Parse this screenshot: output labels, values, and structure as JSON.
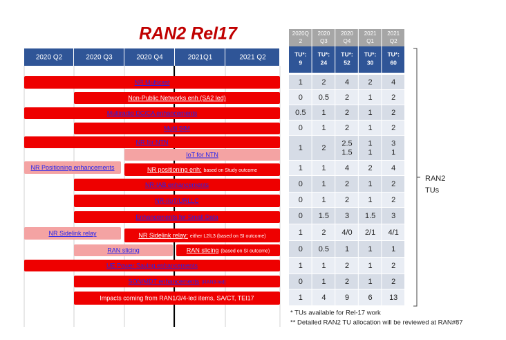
{
  "title": "RAN2 Rel17",
  "quarters": [
    "2020 Q2",
    "2020 Q3",
    "2020 Q4",
    "2021Q1",
    "2021 Q2"
  ],
  "items": [
    [
      [
        "NR Multicast"
      ]
    ],
    [
      [
        "Non-Public Networks enh (SA2 led)"
      ]
    ],
    [
      [
        "Multiradio DC/CA enhancements"
      ]
    ],
    [
      [
        "Multi SIM"
      ]
    ],
    [
      [
        "NR for NTN"
      ]
    ],
    [
      [
        "IoT for NTN"
      ]
    ],
    [
      [
        "NR Positioning enhancements"
      ],
      [
        "NR positioning enh:",
        "based on Study outcome"
      ]
    ],
    [
      [
        "NR-IAB enhancements"
      ]
    ],
    [
      [
        "NR-IIoT/URLLC"
      ]
    ],
    [
      [
        "Enhancements for Small Data"
      ]
    ],
    [
      [
        "NR Sidelink relay"
      ],
      [
        "NR Sidelink relay:",
        "either L2/L3 (based on SI outcome)"
      ]
    ],
    [
      [
        "RAN slicing"
      ],
      [
        "RAN slicing",
        "(based on SI outcome)"
      ]
    ],
    [
      [
        "UE Power Saving enhancements"
      ]
    ],
    [
      [
        "SON/MDT enhancements",
        "(RAN3-led)"
      ]
    ],
    [
      [
        "Impacts coming from RAN1/3/4-led items, SA/CT, TEI17"
      ]
    ]
  ],
  "table": {
    "header": [
      [
        "2020Q",
        "2"
      ],
      [
        "2020",
        "Q3"
      ],
      [
        "2020",
        "Q4"
      ],
      [
        "2021",
        "Q1"
      ],
      [
        "2021",
        "Q2"
      ]
    ],
    "tus": [
      [
        "TU*:",
        "9"
      ],
      [
        "TU*:",
        "24"
      ],
      [
        "TU*:",
        "52"
      ],
      [
        "TU*:",
        "30"
      ],
      [
        "TU*:",
        "60"
      ]
    ],
    "rows": [
      [
        [
          1
        ],
        [
          2
        ],
        [
          4
        ],
        [
          2
        ],
        [
          4
        ]
      ],
      [
        [
          0
        ],
        [
          0.5
        ],
        [
          2
        ],
        [
          1
        ],
        [
          2
        ]
      ],
      [
        [
          0.5
        ],
        [
          1
        ],
        [
          2
        ],
        [
          1
        ],
        [
          2
        ]
      ],
      [
        [
          0
        ],
        [
          1
        ],
        [
          2
        ],
        [
          1
        ],
        [
          2
        ]
      ],
      [
        [
          1
        ],
        [
          2
        ],
        [
          2.5,
          1.5
        ],
        [
          1,
          1
        ],
        [
          3,
          1
        ]
      ],
      [
        [
          1
        ],
        [
          1
        ],
        [
          4
        ],
        [
          2
        ],
        [
          4
        ]
      ],
      [
        [
          0
        ],
        [
          1
        ],
        [
          2
        ],
        [
          1
        ],
        [
          2
        ]
      ],
      [
        [
          0
        ],
        [
          1
        ],
        [
          2
        ],
        [
          1
        ],
        [
          2
        ]
      ],
      [
        [
          0
        ],
        [
          1.5
        ],
        [
          3
        ],
        [
          1.5
        ],
        [
          3
        ]
      ],
      [
        [
          1
        ],
        [
          2
        ],
        [
          "4/0"
        ],
        [
          "2/1"
        ],
        [
          "4/1"
        ]
      ],
      [
        [
          0
        ],
        [
          0.5
        ],
        [
          1
        ],
        [
          1
        ],
        [
          1
        ]
      ],
      [
        [
          1
        ],
        [
          1
        ],
        [
          2
        ],
        [
          1
        ],
        [
          2
        ]
      ],
      [
        [
          0
        ],
        [
          1
        ],
        [
          2
        ],
        [
          1
        ],
        [
          2
        ]
      ],
      [
        [
          1
        ],
        [
          4
        ],
        [
          9
        ],
        [
          6
        ],
        [
          13
        ]
      ]
    ]
  },
  "bracket_label": [
    "RAN2",
    "TUs"
  ],
  "footnotes": [
    "* TUs available for Rel-17 work",
    "** Detailed RAN2 TU allocation will be reviewed at RAN#87"
  ]
}
